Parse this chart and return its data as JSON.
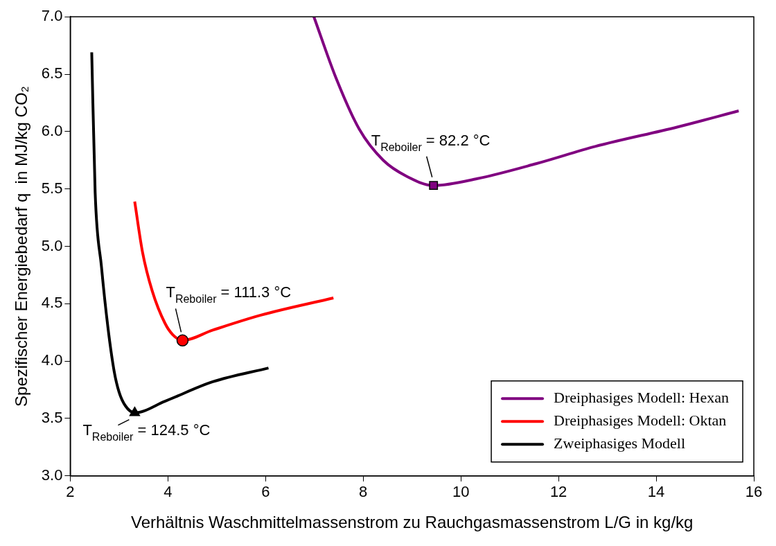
{
  "chart_data": {
    "type": "line",
    "xlabel": "Verhältnis Waschmittelmassenstrom zu Rauchgasmassenstrom L/G in kg/kg",
    "ylabel": "Spezifischer Energiebedarf q  in MJ/kg CO₂",
    "xlim": [
      2,
      16
    ],
    "xticks": [
      2,
      4,
      6,
      8,
      10,
      12,
      14,
      16
    ],
    "ylim": [
      3,
      7
    ],
    "yticks": [
      {
        "value": 3,
        "label": "3.0"
      },
      {
        "value": 3.5,
        "label": "3.5"
      },
      {
        "value": 4,
        "label": "4.0"
      },
      {
        "value": 4.5,
        "label": "4.5"
      },
      {
        "value": 5,
        "label": "5.0"
      },
      {
        "value": 5.5,
        "label": "5.5"
      },
      {
        "value": 6,
        "label": "6.0"
      },
      {
        "value": 6.5,
        "label": "6.5"
      },
      {
        "value": 7,
        "label": "7.0"
      }
    ],
    "grid": false,
    "legend": "bottom right",
    "line_style": "solid",
    "series": [
      {
        "name": "Dreiphasiges Modell: Hexan",
        "color": "#800080",
        "marker": "none",
        "x": [
          6.99,
          7.44,
          7.92,
          8.41,
          8.89,
          9.44,
          10.34,
          11.54,
          12.75,
          14.44,
          15.69
        ],
        "values": [
          7.0,
          6.47,
          6.02,
          5.75,
          5.61,
          5.53,
          5.59,
          5.72,
          5.87,
          6.04,
          6.18
        ]
      },
      {
        "name": "Dreiphasiges Modell: Oktan",
        "color": "#ff0000",
        "marker": "none",
        "x": [
          3.32,
          3.48,
          3.68,
          3.94,
          4.1,
          4.3,
          4.92,
          5.9,
          7.39
        ],
        "values": [
          5.39,
          4.95,
          4.61,
          4.33,
          4.23,
          4.18,
          4.27,
          4.4,
          4.55
        ]
      },
      {
        "name": "Zweiphasiges Modell",
        "color": "#000000",
        "marker": "none",
        "x": [
          2.44,
          2.51,
          2.64,
          2.77,
          2.9,
          3.0,
          3.13,
          3.32,
          3.94,
          4.92,
          6.06
        ],
        "values": [
          6.69,
          5.47,
          4.82,
          4.3,
          3.91,
          3.73,
          3.61,
          3.55,
          3.65,
          3.82,
          3.94
        ]
      },
      {
        "type": "scatter",
        "color": "#800080",
        "marker": "square",
        "x": [
          9.44
        ],
        "values": [
          5.53
        ]
      },
      {
        "type": "scatter",
        "color": "#ff0000",
        "marker": "circle",
        "x": [
          4.3
        ],
        "values": [
          4.18
        ]
      },
      {
        "type": "scatter",
        "color": "#000000",
        "marker": "triangle",
        "x": [
          3.32
        ],
        "values": [
          3.55
        ]
      }
    ],
    "annotations": [
      {
        "text": "T$_{Reboiler}$ = 82.2 °C",
        "x": 9.44,
        "y": 5.53
      },
      {
        "text": "T$_{Reboiler}$ = 111.3 °C",
        "x": 4.3,
        "y": 4.18
      },
      {
        "text": "T$_{Reboiler}$ = 124.5 °C",
        "x": 3.32,
        "y": 3.55
      }
    ]
  }
}
